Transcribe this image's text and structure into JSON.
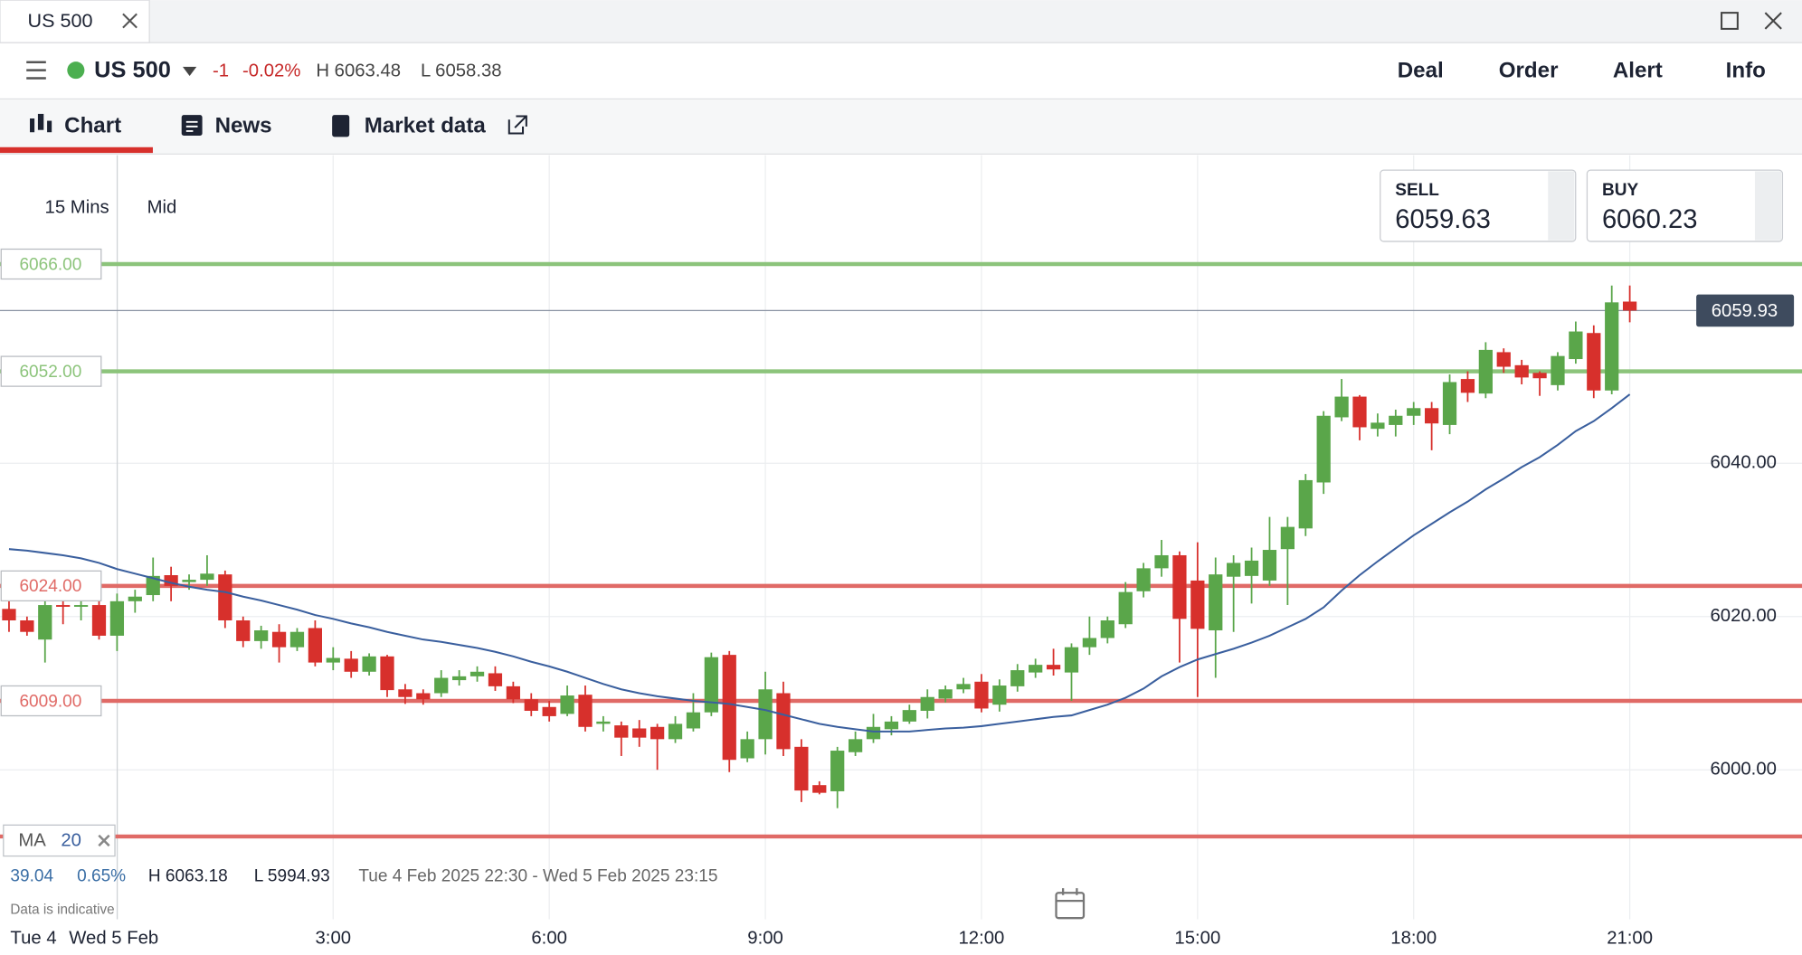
{
  "window": {
    "tab_title": "US 500"
  },
  "header": {
    "instrument": "US 500",
    "change": "-1",
    "change_pct": "-0.02%",
    "high": "H 6063.48",
    "low": "L 6058.38",
    "actions": [
      "Deal",
      "Order",
      "Alert",
      "Info"
    ]
  },
  "tabs": [
    "Chart",
    "News",
    "Market data"
  ],
  "toolbar": {
    "interval": "15 Mins",
    "price_type": "Mid"
  },
  "quotes": {
    "sell_label": "SELL",
    "sell": "6059.63",
    "buy_label": "BUY",
    "buy": "6060.23"
  },
  "indicator": {
    "name": "MA",
    "period": "20"
  },
  "stats": {
    "change": "39.04",
    "change_pct": "0.65%",
    "high": "H 6063.18",
    "low": "L 5994.93",
    "range": "Tue 4 Feb 2025 22:30 - Wed 5 Feb 2025 23:15"
  },
  "note": "Data is indicative",
  "chart_data": {
    "type": "candlestick",
    "categories": [
      "22:30",
      "22:45",
      "23:00",
      "23:15",
      "23:30",
      "23:45",
      "0:00",
      "0:15",
      "0:30",
      "0:45",
      "1:00",
      "1:15",
      "1:30",
      "1:45",
      "2:00",
      "2:15",
      "2:30",
      "2:45",
      "3:00",
      "3:15",
      "3:30",
      "3:45",
      "4:00",
      "4:15",
      "4:30",
      "4:45",
      "5:00",
      "5:15",
      "5:30",
      "5:45",
      "6:00",
      "6:15",
      "6:30",
      "6:45",
      "7:00",
      "7:15",
      "7:30",
      "7:45",
      "8:00",
      "8:15",
      "8:30",
      "8:45",
      "9:00",
      "9:15",
      "9:30",
      "9:45",
      "10:00",
      "10:15",
      "10:30",
      "10:45",
      "11:00",
      "11:15",
      "11:30",
      "11:45",
      "12:00",
      "12:15",
      "12:30",
      "12:45",
      "13:00",
      "13:15",
      "13:30",
      "13:45",
      "14:00",
      "14:15",
      "14:30",
      "14:45",
      "15:00",
      "15:15",
      "15:30",
      "15:45",
      "16:00",
      "16:15",
      "16:30",
      "16:45",
      "17:00",
      "17:15",
      "17:30",
      "17:45",
      "18:00",
      "18:15",
      "18:30",
      "18:45",
      "19:00",
      "19:15",
      "19:30",
      "19:45",
      "20:00",
      "20:15",
      "20:30",
      "20:45",
      "21:00"
    ],
    "open": [
      6021.0,
      6019.5,
      6017,
      6021.5,
      6021.3,
      6021.5,
      6017.5,
      6022,
      6022.8,
      6025.4,
      6024.5,
      6024.8,
      6025.5,
      6019.5,
      6016.8,
      6018,
      6016,
      6018.5,
      6014,
      6014.5,
      6012.8,
      6014.8,
      6010.5,
      6010,
      6010,
      6011.7,
      6012.2,
      6012.6,
      6010.9,
      6009.2,
      6008.2,
      6007.3,
      6009.8,
      6006,
      6005.8,
      6005.4,
      6005.6,
      6004,
      6005.4,
      6007.5,
      6015,
      6001.5,
      6004,
      6010,
      6003,
      5998,
      5997.2,
      6002.3,
      6004,
      6005.3,
      6006.3,
      6007.7,
      6009.3,
      6010.5,
      6011.5,
      6008.5,
      6010.9,
      6012.7,
      6013.7,
      6012.7,
      6016,
      6017.2,
      6019,
      6023.3,
      6026.3,
      6028,
      6024.7,
      6018.2,
      6025.2,
      6025.3,
      6024.7,
      6028.8,
      6031.5,
      6037.5,
      6046,
      6048.7,
      6044.5,
      6045,
      6046.2,
      6047.2,
      6045,
      6051,
      6049.1,
      6054.5,
      6052.8,
      6051.8,
      6050.2,
      6053.6,
      6057,
      6049.5,
      6061.1
    ],
    "high": [
      6022,
      6020,
      6022.5,
      6023,
      6022,
      6022,
      6023,
      6023.5,
      6027.7,
      6026.5,
      6025.5,
      6028,
      6026,
      6020,
      6018.8,
      6019,
      6018.5,
      6019.5,
      6016,
      6015.5,
      6015.2,
      6015,
      6011.2,
      6010.5,
      6013,
      6013,
      6013.5,
      6013.5,
      6011.5,
      6010,
      6009,
      6011,
      6011,
      6007,
      6006.3,
      6006.5,
      6006,
      6007,
      6010,
      6015.3,
      6015.5,
      6005,
      6012.8,
      6011.5,
      6004,
      5998.5,
      6003,
      6005,
      6007.3,
      6007,
      6008.5,
      6010.5,
      6011,
      6012,
      6012.5,
      6011.8,
      6013.8,
      6014.5,
      6015.8,
      6016.5,
      6020,
      6020,
      6024.5,
      6027,
      6030,
      6028.5,
      6029.7,
      6027.7,
      6028,
      6029,
      6033,
      6033,
      6038.6,
      6046.8,
      6051,
      6048.9,
      6046.5,
      6047,
      6048,
      6048,
      6051.6,
      6052,
      6055.8,
      6055,
      6053.5,
      6052,
      6054.5,
      6058.5,
      6058,
      6063.2,
      6063.2
    ],
    "low": [
      6018,
      6017.5,
      6014,
      6019,
      6019.5,
      6017,
      6015.5,
      6020.5,
      6022,
      6022,
      6023.5,
      6024,
      6018.5,
      6016,
      6015.8,
      6014,
      6015.5,
      6013.5,
      6013,
      6012,
      6012.3,
      6009.5,
      6008.6,
      6008.5,
      6009.5,
      6011,
      6011.5,
      6010.3,
      6008.7,
      6007,
      6006.3,
      6007,
      6005,
      6005,
      6001.8,
      6003,
      6000,
      6003.5,
      6005,
      6007,
      5999.7,
      6001,
      6002,
      6001.8,
      5995.8,
      5996.8,
      5995,
      6001.8,
      6003.5,
      6004.5,
      6006,
      6006.7,
      6008.8,
      6010,
      6007.5,
      6007.6,
      6010.2,
      6012,
      6012.3,
      6009,
      6015,
      6016.5,
      6018.5,
      6022.5,
      6025.2,
      6014,
      6009.5,
      6012,
      6018,
      6021.7,
      6024,
      6021.5,
      6030.5,
      6036,
      6045.5,
      6043,
      6043.5,
      6043.5,
      6045,
      6041.7,
      6043.8,
      6048,
      6048.5,
      6051.8,
      6050.3,
      6048.8,
      6049.5,
      6053,
      6048.5,
      6049,
      6058.4
    ],
    "close": [
      6019.5,
      6018,
      6021.5,
      6021.3,
      6021.5,
      6017.5,
      6022,
      6022.6,
      6025.3,
      6024,
      6024.8,
      6025.6,
      6019.5,
      6016.8,
      6018.2,
      6016,
      6018,
      6014,
      6014.6,
      6012.8,
      6014.8,
      6010.4,
      6009.5,
      6009.2,
      6012,
      6012.2,
      6012.8,
      6010.9,
      6009.2,
      6007.7,
      6007,
      6009.7,
      6005.6,
      6006.3,
      6004.2,
      6004.2,
      6004,
      6006,
      6007.5,
      6014.7,
      6001.3,
      6004,
      6010.5,
      6002.7,
      5997.3,
      5997,
      6002.5,
      6004,
      6005.6,
      6006.3,
      6007.8,
      6009.5,
      6010.5,
      6011.2,
      6008,
      6011,
      6013,
      6013.7,
      6013.1,
      6016,
      6017.2,
      6019.5,
      6023.2,
      6026.3,
      6028,
      6019.7,
      6018.4,
      6025.5,
      6027,
      6027.3,
      6028.7,
      6031.7,
      6037.8,
      6046.2,
      6048.7,
      6044.7,
      6045.3,
      6046.2,
      6047.2,
      6045.2,
      6050.6,
      6049.2,
      6054.8,
      6052.6,
      6051.2,
      6051.1,
      6054,
      6057.2,
      6049.5,
      6061,
      6059.93
    ],
    "series": [
      {
        "name": "MA",
        "color": "#3a5f9e",
        "values": [
          6028.8,
          6028.6,
          6028.3,
          6028.0,
          6027.6,
          6027.0,
          6026.2,
          6025.6,
          6025.0,
          6024.4,
          6023.9,
          6023.5,
          6023.2,
          6022.6,
          6022.1,
          6021.5,
          6020.9,
          6020.2,
          6019.7,
          6019.1,
          6018.6,
          6018.0,
          6017.5,
          6017.0,
          6016.7,
          6016.3,
          6015.9,
          6015.4,
          6014.8,
          6014.1,
          6013.5,
          6012.8,
          6012.0,
          6011.2,
          6010.5,
          6010.0,
          6009.6,
          6009.3,
          6009.0,
          6008.8,
          6008.6,
          6008.2,
          6007.8,
          6007.2,
          6006.6,
          6006.0,
          6005.6,
          6005.3,
          6005.0,
          6005.0,
          6005.0,
          6005.2,
          6005.4,
          6005.5,
          6005.7,
          6006.0,
          6006.3,
          6006.6,
          6006.9,
          6007.1,
          6007.8,
          6008.5,
          6009.4,
          6010.6,
          6012.2,
          6013.4,
          6014.4,
          6015.1,
          6015.8,
          6016.6,
          6017.5,
          6018.6,
          6019.7,
          6021.2,
          6023.4,
          6025.4,
          6027.2,
          6028.9,
          6030.6,
          6032.1,
          6033.6,
          6035.0,
          6036.6,
          6038.0,
          6039.5,
          6040.8,
          6042.4,
          6044.2,
          6045.5,
          6047.2,
          6049.0
        ]
      }
    ],
    "up_color": "#5aa64a",
    "down_color": "#d7302c",
    "ylim": [
      5980.5,
      6080.2
    ],
    "yticks": [
      {
        "value": 6000,
        "label": "6000.00"
      },
      {
        "value": 6020,
        "label": "6020.00"
      },
      {
        "value": 6040,
        "label": "6040.00"
      }
    ],
    "xticks": [
      "3:00",
      "6:00",
      "9:00",
      "12:00",
      "15:00",
      "18:00",
      "21:00"
    ],
    "day_labels": [
      "Tue 4",
      "Wed 5 Feb"
    ],
    "levels": [
      {
        "value": 6066,
        "label": "6066.00",
        "color": "#8cc47b"
      },
      {
        "value": 6052,
        "label": "6052.00",
        "color": "#8cc47b"
      },
      {
        "value": 6024,
        "label": "6024.00",
        "color": "#e06a66"
      },
      {
        "value": 6009,
        "label": "6009.00",
        "color": "#e06a66"
      },
      {
        "value": 5991.3,
        "color": "#e06a66"
      }
    ],
    "last_price": 6059.93,
    "grid": true
  }
}
